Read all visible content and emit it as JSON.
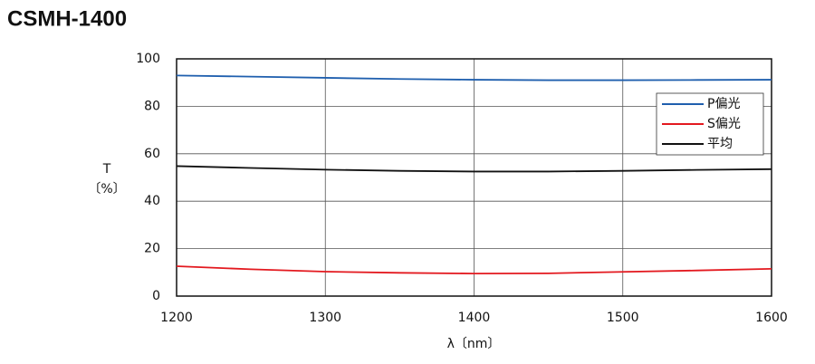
{
  "chart_data": {
    "type": "line",
    "title": "CSMH-1400",
    "xlabel": "λ〔nm〕",
    "ylabel": [
      "T",
      "〔%〕"
    ],
    "x": [
      1200,
      1250,
      1300,
      1350,
      1400,
      1450,
      1500,
      1550,
      1600
    ],
    "series": [
      {
        "name": "P偏光",
        "color": "#1f5fae",
        "values": [
          93,
          92.5,
          92,
          91.5,
          91.2,
          91,
          91,
          91.1,
          91.2
        ]
      },
      {
        "name": "S偏光",
        "color": "#e3191f",
        "values": [
          12.6,
          11.3,
          10.3,
          9.8,
          9.5,
          9.6,
          10.2,
          10.8,
          11.5
        ]
      },
      {
        "name": "平均",
        "color": "#111111",
        "values": [
          54.8,
          54,
          53.3,
          52.8,
          52.5,
          52.5,
          52.8,
          53.2,
          53.5
        ]
      }
    ],
    "xlim": [
      1200,
      1600
    ],
    "xticks": [
      1200,
      1300,
      1400,
      1500,
      1600
    ],
    "ylim": [
      0,
      100
    ],
    "yticks": [
      0,
      20,
      40,
      60,
      80,
      100
    ],
    "grid": true,
    "legend": "right"
  }
}
